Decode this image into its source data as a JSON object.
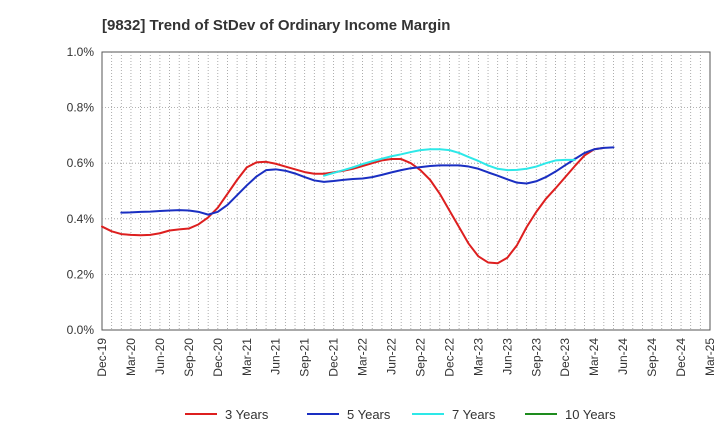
{
  "chart_data": {
    "type": "line",
    "title": "[9832]  Trend of StDev of Ordinary Income Margin",
    "xlabel": "",
    "ylabel": "",
    "ylim": [
      0,
      1.0
    ],
    "y_ticks": [
      0.0,
      0.2,
      0.4,
      0.6,
      0.8,
      1.0
    ],
    "y_tick_labels": [
      "0.0%",
      "0.2%",
      "0.4%",
      "0.6%",
      "0.8%",
      "1.0%"
    ],
    "x_tick_labels": [
      "Dec-19",
      "Mar-20",
      "Jun-20",
      "Sep-20",
      "Dec-20",
      "Mar-21",
      "Jun-21",
      "Sep-21",
      "Dec-21",
      "Mar-22",
      "Jun-22",
      "Sep-22",
      "Dec-22",
      "Mar-23",
      "Jun-23",
      "Sep-23",
      "Dec-23",
      "Mar-24",
      "Jun-24",
      "Sep-24",
      "Dec-24",
      "Mar-25"
    ],
    "grid": true,
    "legend_position": "bottom",
    "series": [
      {
        "name": "3 Years",
        "color": "#dd1f1f",
        "start_index": 0,
        "values": [
          0.372,
          0.355,
          0.345,
          0.342,
          0.341,
          0.342,
          0.348,
          0.358,
          0.362,
          0.365,
          0.38,
          0.405,
          0.44,
          0.49,
          0.54,
          0.585,
          0.603,
          0.605,
          0.598,
          0.588,
          0.578,
          0.568,
          0.562,
          0.562,
          0.567,
          0.573,
          0.58,
          0.59,
          0.6,
          0.61,
          0.615,
          0.615,
          0.6,
          0.575,
          0.54,
          0.49,
          0.43,
          0.37,
          0.31,
          0.265,
          0.243,
          0.24,
          0.26,
          0.305,
          0.37,
          0.425,
          0.472,
          0.51,
          0.55,
          0.59,
          0.628,
          0.65,
          0.655
        ]
      },
      {
        "name": "5 Years",
        "color": "#1a2fc2",
        "start_index": 2,
        "values": [
          0.422,
          0.423,
          0.425,
          0.426,
          0.428,
          0.43,
          0.431,
          0.43,
          0.425,
          0.415,
          0.425,
          0.45,
          0.485,
          0.52,
          0.552,
          0.575,
          0.578,
          0.573,
          0.563,
          0.55,
          0.538,
          0.533,
          0.536,
          0.54,
          0.543,
          0.545,
          0.55,
          0.558,
          0.567,
          0.575,
          0.582,
          0.586,
          0.59,
          0.592,
          0.592,
          0.592,
          0.588,
          0.58,
          0.567,
          0.555,
          0.542,
          0.53,
          0.527,
          0.535,
          0.55,
          0.57,
          0.593,
          0.615,
          0.637,
          0.65,
          0.655,
          0.657
        ]
      },
      {
        "name": "7 Years",
        "color": "#2de8e8",
        "start_index": 23,
        "values": [
          0.555,
          0.565,
          0.575,
          0.585,
          0.597,
          0.607,
          0.616,
          0.625,
          0.632,
          0.64,
          0.647,
          0.65,
          0.65,
          0.647,
          0.637,
          0.622,
          0.608,
          0.592,
          0.58,
          0.575,
          0.576,
          0.58,
          0.588,
          0.6,
          0.61,
          0.612,
          0.612
        ]
      },
      {
        "name": "10 Years",
        "color": "#1e8c1e",
        "start_index": 0,
        "values": []
      }
    ]
  }
}
